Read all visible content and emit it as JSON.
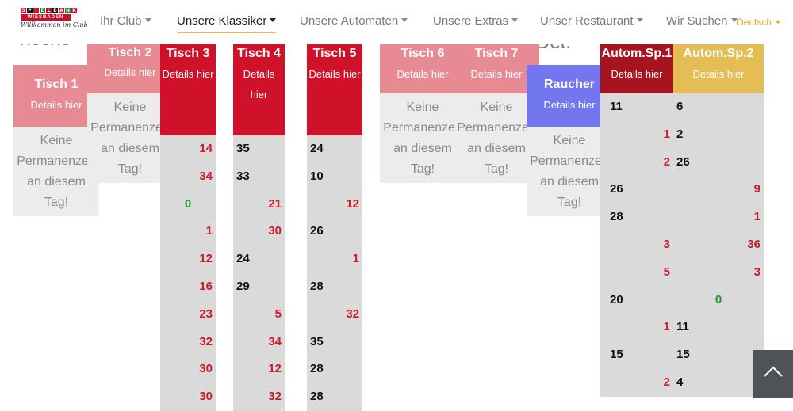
{
  "header": {
    "logo": {
      "squares": "SPIELBANK",
      "sub": "WIESBADEN",
      "script": "Willkommen im Club"
    },
    "nav": [
      {
        "label": "Ihr Club",
        "active": false
      },
      {
        "label": "Unsere Klassiker",
        "active": true
      },
      {
        "label": "Unsere Automaten",
        "active": false
      },
      {
        "label": "Unsere Extras",
        "active": false
      },
      {
        "label": "Unser Restaurant",
        "active": false
      },
      {
        "label": "Wir Suchen",
        "active": false
      }
    ],
    "language": "Deutsch"
  },
  "peek": {
    "left": "Tische",
    "right": "Det."
  },
  "common": {
    "details": "Details hier",
    "no_perm": "Keine Permanenzen an diesem Tag!"
  },
  "tables": {
    "t1": {
      "title": "Tisch 1"
    },
    "t2": {
      "title": "Tisch 2"
    },
    "t3": {
      "title": "Tisch 3"
    },
    "t4": {
      "title": "Tisch 4"
    },
    "t5": {
      "title": "Tisch 5"
    },
    "t6": {
      "title": "Tisch 6"
    },
    "t7": {
      "title": "Tisch 7"
    },
    "raucher": {
      "title": "Raucher"
    },
    "a1": {
      "title": "Autom.Sp.1"
    },
    "a2": {
      "title": "Autom.Sp.2"
    }
  },
  "columns": {
    "t3": [
      {
        "v": "14",
        "c": "red"
      },
      {
        "v": "34",
        "c": "red"
      },
      {
        "v": "0",
        "c": "green"
      },
      {
        "v": "1",
        "c": "red"
      },
      {
        "v": "12",
        "c": "red"
      },
      {
        "v": "16",
        "c": "red"
      },
      {
        "v": "23",
        "c": "red"
      },
      {
        "v": "32",
        "c": "red"
      },
      {
        "v": "30",
        "c": "red"
      },
      {
        "v": "30",
        "c": "red"
      }
    ],
    "t4": [
      {
        "v": "35",
        "c": "black"
      },
      {
        "v": "33",
        "c": "black"
      },
      {
        "v": "21",
        "c": "red"
      },
      {
        "v": "30",
        "c": "red"
      },
      {
        "v": "24",
        "c": "black"
      },
      {
        "v": "29",
        "c": "black"
      },
      {
        "v": "5",
        "c": "red"
      },
      {
        "v": "34",
        "c": "red"
      },
      {
        "v": "12",
        "c": "red"
      },
      {
        "v": "32",
        "c": "red"
      }
    ],
    "t5": [
      {
        "v": "24",
        "c": "black"
      },
      {
        "v": "10",
        "c": "black"
      },
      {
        "v": "12",
        "c": "red"
      },
      {
        "v": "26",
        "c": "black"
      },
      {
        "v": "1",
        "c": "red"
      },
      {
        "v": "28",
        "c": "black"
      },
      {
        "v": "32",
        "c": "red"
      },
      {
        "v": "35",
        "c": "black"
      },
      {
        "v": "28",
        "c": "black"
      },
      {
        "v": "28",
        "c": "black"
      }
    ],
    "a1": [
      {
        "v": "11",
        "c": "black"
      },
      {
        "v": "1",
        "c": "red"
      },
      {
        "v": "2",
        "c": "red"
      },
      {
        "v": "26",
        "c": "black"
      },
      {
        "v": "28",
        "c": "black"
      },
      {
        "v": "3",
        "c": "red"
      },
      {
        "v": "5",
        "c": "red"
      },
      {
        "v": "20",
        "c": "black"
      },
      {
        "v": "1",
        "c": "red"
      },
      {
        "v": "15",
        "c": "black"
      },
      {
        "v": "2",
        "c": "red"
      }
    ],
    "a2": [
      {
        "v": "6",
        "c": "black"
      },
      {
        "v": "2",
        "c": "black"
      },
      {
        "v": "26",
        "c": "black"
      },
      {
        "v": "9",
        "c": "red"
      },
      {
        "v": "1",
        "c": "red"
      },
      {
        "v": "36",
        "c": "red"
      },
      {
        "v": "3",
        "c": "red"
      },
      {
        "v": "0",
        "c": "green"
      },
      {
        "v": "11",
        "c": "black"
      },
      {
        "v": "15",
        "c": "black"
      },
      {
        "v": "4",
        "c": "black"
      }
    ]
  },
  "colors": {
    "red": "#cc1a2a",
    "green": "#1c9a2a",
    "accent": "#e8b85a",
    "lang": "#e6a33a"
  }
}
